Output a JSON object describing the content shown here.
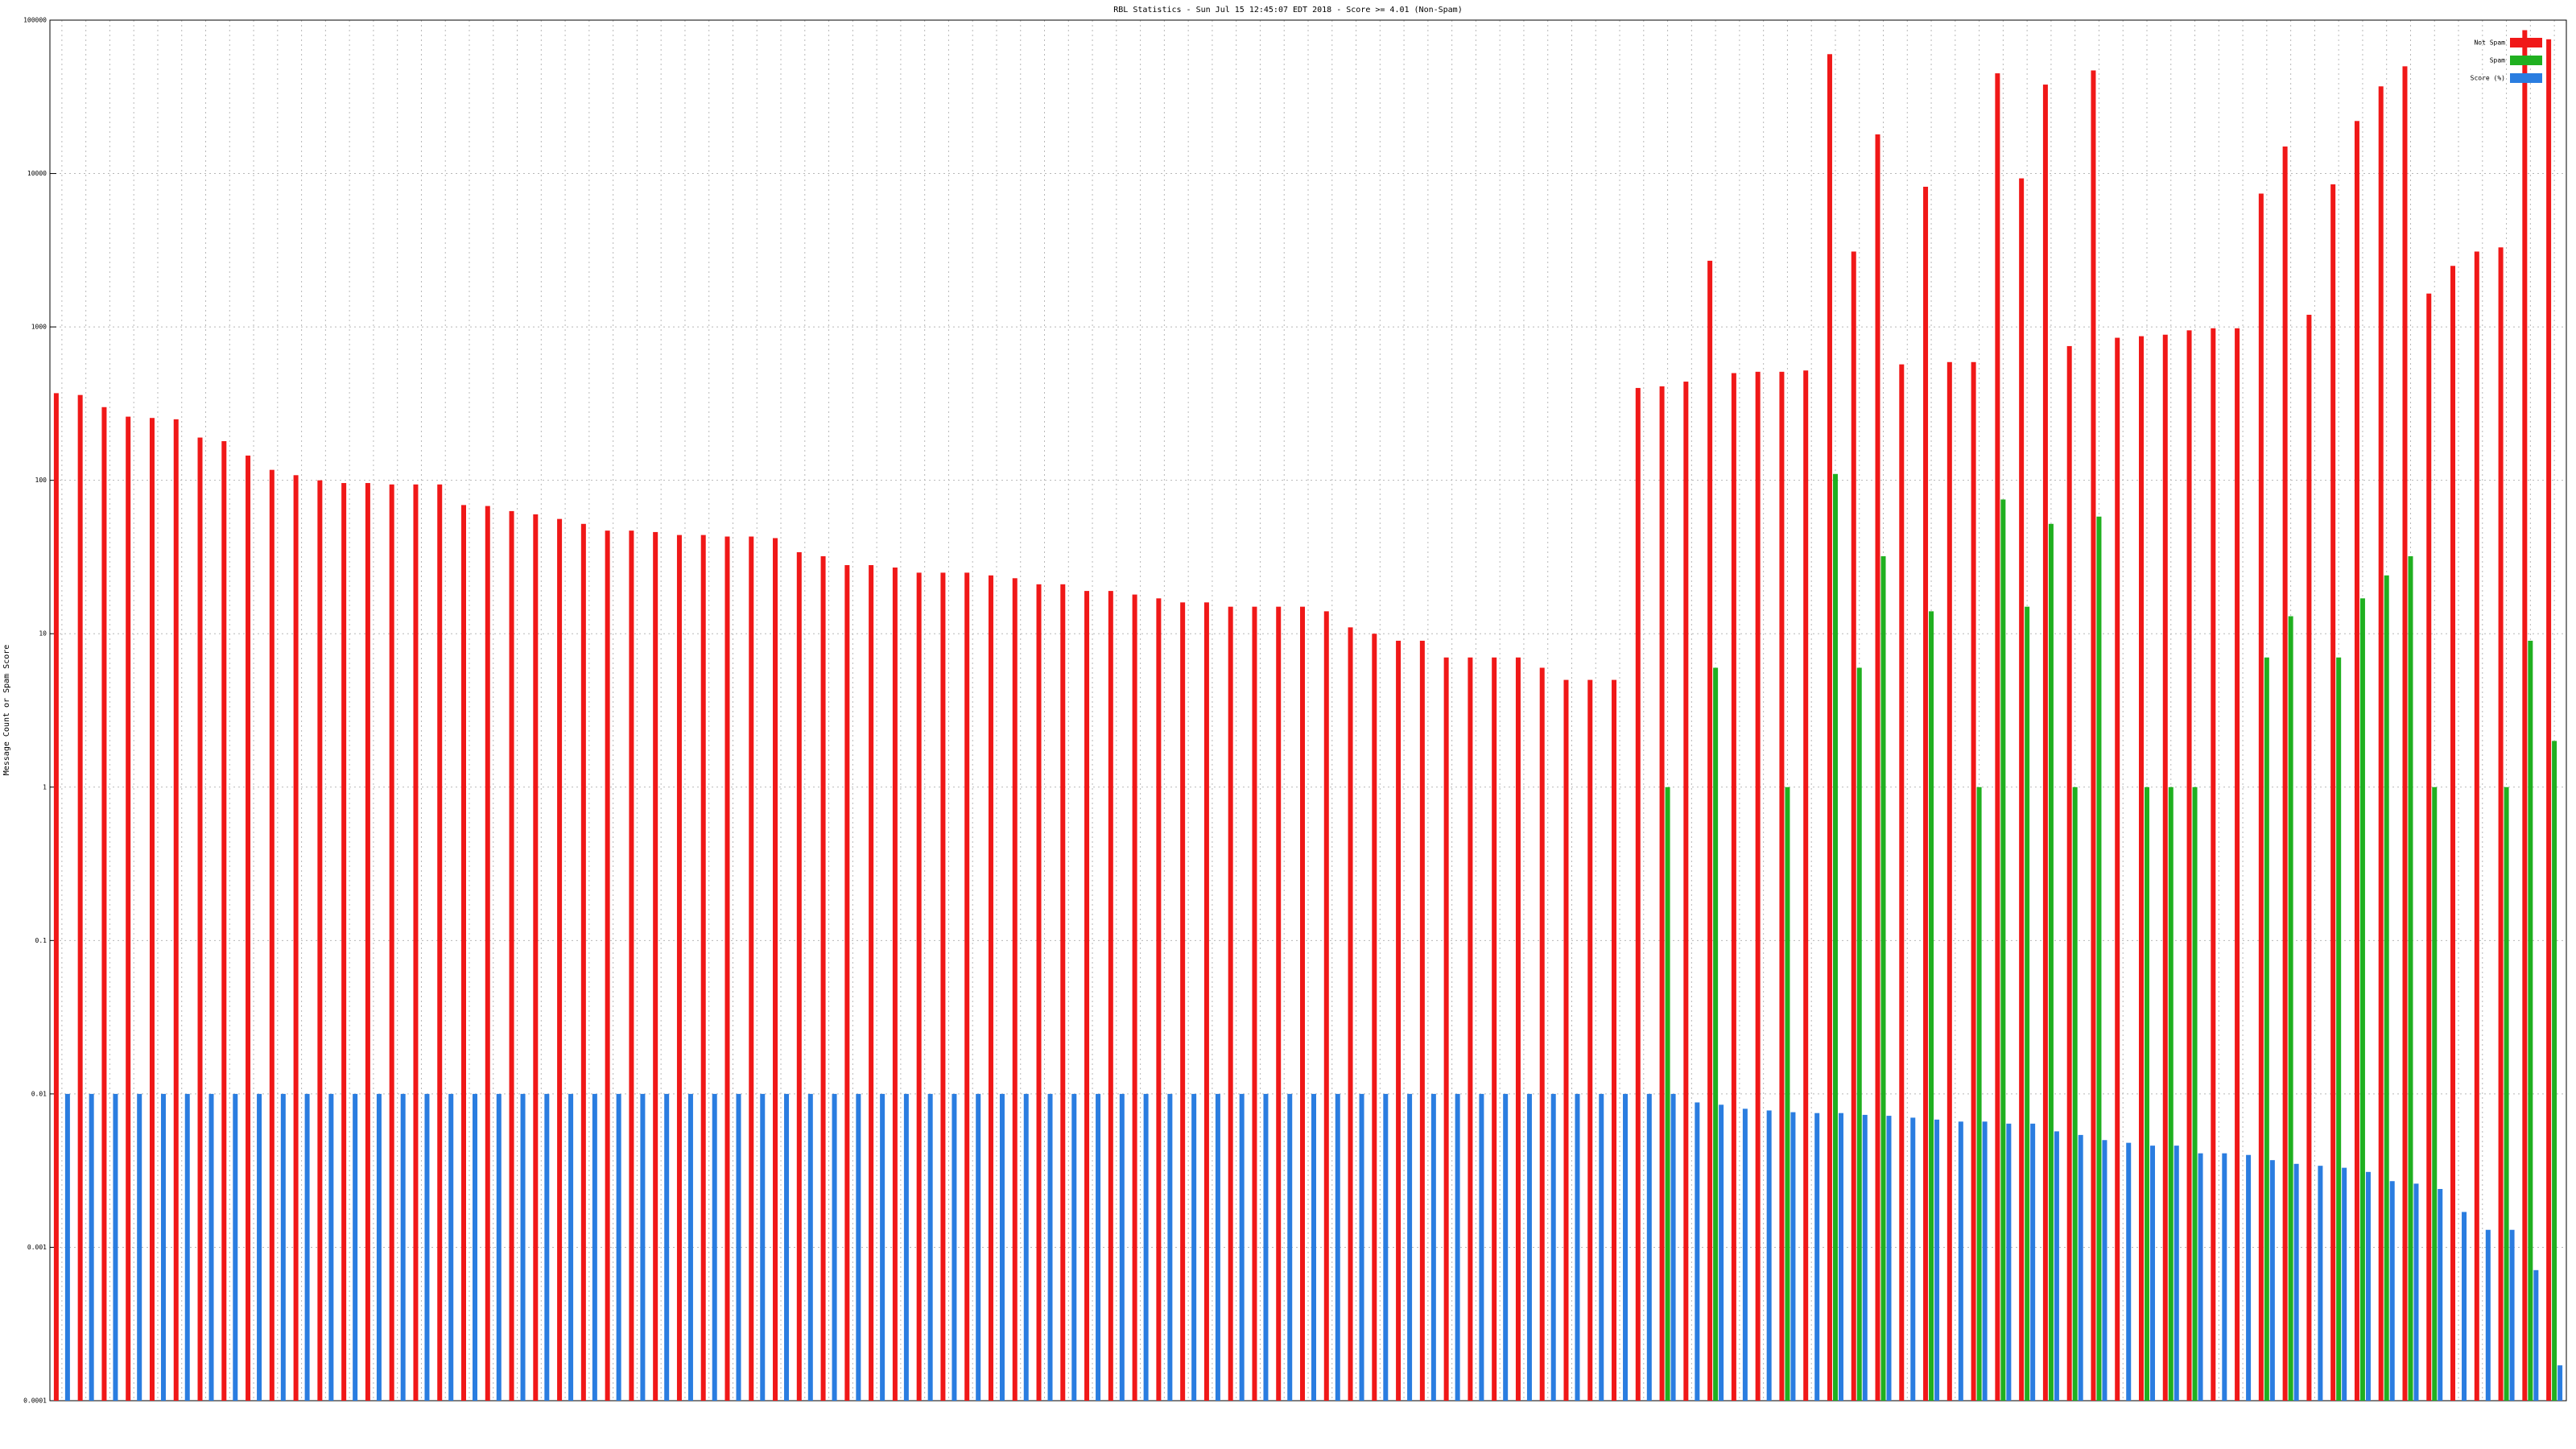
{
  "chart_data": {
    "type": "bar",
    "title": "RBL Statistics - Sun Jul 15 12:45:07 EDT 2018 - Score >= 4.01 (Non-Spam)",
    "y_label": "Message Count or Spam Score",
    "log_scale": true,
    "grid": true,
    "legend": "top-right",
    "ylim": [
      0.0001,
      100000
    ],
    "yticks": [
      0.0001,
      0.001,
      0.01,
      0.1,
      1,
      10,
      100,
      1000,
      10000,
      100000
    ],
    "categories": [
      null,
      null,
      null,
      null,
      null,
      null,
      null,
      null,
      null,
      null,
      null,
      null,
      null,
      null,
      null,
      null,
      null,
      null,
      null,
      null,
      null,
      null,
      null,
      null,
      null,
      null,
      null,
      null,
      null,
      null,
      null,
      null,
      null,
      null,
      null,
      null,
      null,
      null,
      null,
      null,
      null,
      null,
      null,
      null,
      null,
      null,
      null,
      null,
      null,
      null,
      null,
      null,
      null,
      null,
      null,
      null,
      null,
      null,
      null,
      null,
      null,
      null,
      null,
      null,
      null,
      null,
      null,
      null,
      null,
      null,
      null,
      null,
      null,
      null,
      null,
      null,
      null,
      null,
      null,
      null,
      null,
      null,
      null,
      null,
      null,
      null,
      null,
      null,
      null,
      null,
      null,
      null,
      null,
      null,
      null,
      null,
      null,
      null,
      null,
      null,
      null,
      null,
      null,
      null,
      null
    ],
    "series": [
      {
        "name": "Not Spam",
        "color": "#f01818",
        "values": [
          370,
          360,
          300,
          260,
          255,
          250,
          190,
          180,
          145,
          117,
          108,
          100,
          96,
          96,
          94,
          94,
          94,
          69,
          68,
          63,
          60,
          56,
          52,
          47,
          47,
          46,
          44,
          44,
          43,
          43,
          42,
          34,
          32,
          28,
          28,
          27,
          25,
          25,
          25,
          24,
          23,
          21,
          21,
          19,
          19,
          18,
          17,
          16,
          16,
          15,
          15,
          15,
          15,
          14,
          11,
          10,
          9,
          9,
          7,
          7,
          7,
          7,
          6,
          5,
          5,
          5,
          400,
          410,
          440,
          2700,
          500,
          510,
          510,
          520,
          60000,
          3100,
          18000,
          570,
          8200,
          590,
          590,
          45000,
          9300,
          38000,
          750,
          47000,
          850,
          870,
          890,
          950,
          980,
          980,
          7400,
          15000,
          1200,
          8500,
          22000,
          37000,
          50000,
          1650,
          2500,
          3100,
          3300,
          86000,
          75000
        ]
      },
      {
        "name": "Spam",
        "color": "#20b020",
        "values": [
          null,
          null,
          null,
          null,
          null,
          null,
          null,
          null,
          null,
          null,
          null,
          null,
          null,
          null,
          null,
          null,
          null,
          null,
          null,
          null,
          null,
          null,
          null,
          null,
          null,
          null,
          null,
          null,
          null,
          null,
          null,
          null,
          null,
          null,
          null,
          null,
          null,
          null,
          null,
          null,
          null,
          null,
          null,
          null,
          null,
          null,
          null,
          null,
          null,
          null,
          null,
          null,
          null,
          null,
          null,
          null,
          null,
          null,
          null,
          null,
          null,
          null,
          null,
          null,
          null,
          null,
          null,
          1,
          null,
          6,
          null,
          null,
          1,
          null,
          110,
          6,
          32,
          null,
          14,
          null,
          1,
          75,
          15,
          52,
          1,
          58,
          null,
          1,
          1,
          1,
          null,
          null,
          7,
          13,
          null,
          7,
          17,
          24,
          32,
          1,
          null,
          null,
          1,
          9,
          2
        ]
      },
      {
        "name": "Score (%)",
        "color": "#2a7de0",
        "values": [
          0.01,
          0.01,
          0.01,
          0.01,
          0.01,
          0.01,
          0.01,
          0.01,
          0.01,
          0.01,
          0.01,
          0.01,
          0.01,
          0.01,
          0.01,
          0.01,
          0.01,
          0.01,
          0.01,
          0.01,
          0.01,
          0.01,
          0.01,
          0.01,
          0.01,
          0.01,
          0.01,
          0.01,
          0.01,
          0.01,
          0.01,
          0.01,
          0.01,
          0.01,
          0.01,
          0.01,
          0.01,
          0.01,
          0.01,
          0.01,
          0.01,
          0.01,
          0.01,
          0.01,
          0.01,
          0.01,
          0.01,
          0.01,
          0.01,
          0.01,
          0.01,
          0.01,
          0.01,
          0.01,
          0.01,
          0.01,
          0.01,
          0.01,
          0.01,
          0.01,
          0.01,
          0.01,
          0.01,
          0.01,
          0.01,
          0.01,
          0.01,
          0.01,
          0.0088,
          0.0085,
          0.008,
          0.0078,
          0.0076,
          0.0075,
          0.0075,
          0.0073,
          0.0072,
          0.007,
          0.0068,
          0.0066,
          0.0066,
          0.0064,
          0.0064,
          0.0057,
          0.0054,
          0.005,
          0.0048,
          0.0046,
          0.0046,
          0.0041,
          0.0041,
          0.004,
          0.0037,
          0.0035,
          0.0034,
          0.0033,
          0.0031,
          0.0027,
          0.0026,
          0.0024,
          0.0017,
          0.0013,
          0.0013,
          0.00071,
          0.00017
        ]
      }
    ]
  }
}
